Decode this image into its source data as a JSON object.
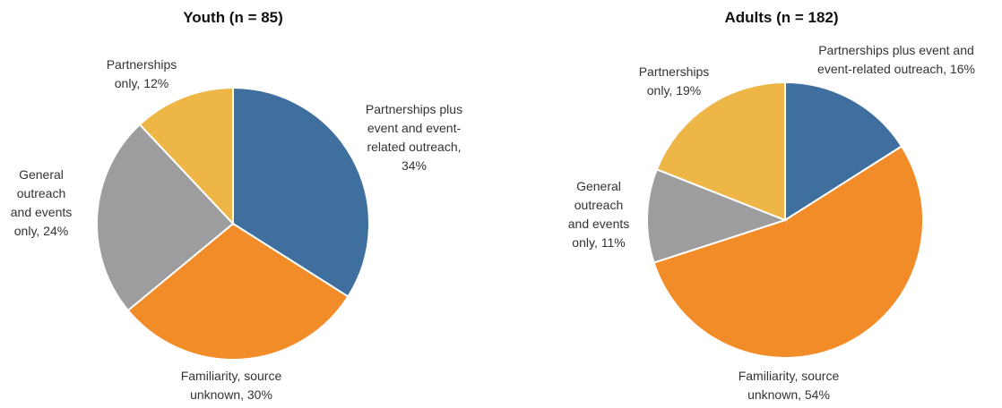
{
  "chart_data": [
    {
      "type": "pie",
      "title": "Youth (n = 85)",
      "values": [
        34,
        30,
        24,
        12
      ],
      "value_labels": [
        "Partnerships plus event and event-related outreach, 34%",
        "Familiarity, source unknown, 30%",
        "General outreach and events only, 24%",
        "Partnerships only, 12%"
      ],
      "colors": [
        "#3f6f9f",
        "#f28c28",
        "#9d9d9f",
        "#eeb547"
      ]
    },
    {
      "type": "pie",
      "title": "Adults (n = 182)",
      "values": [
        16,
        54,
        11,
        19
      ],
      "value_labels": [
        "Partnerships plus event and event-related outreach, 16%",
        "Familiarity, source unknown, 54%",
        "General outreach and events only, 11%",
        "Partnerships only, 19%"
      ],
      "colors": [
        "#3f6f9f",
        "#f28c28",
        "#9d9d9f",
        "#eeb547"
      ]
    }
  ]
}
